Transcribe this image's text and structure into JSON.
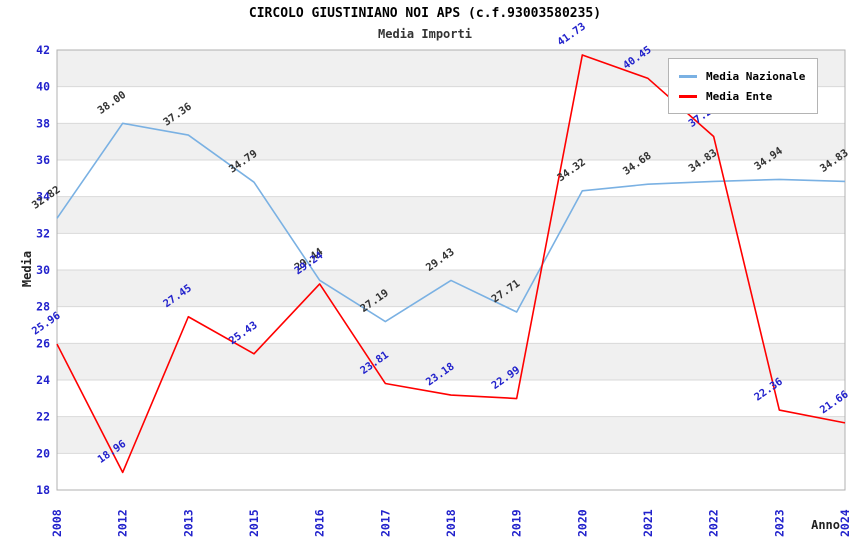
{
  "title": "CIRCOLO GIUSTINIANO NOI APS (c.f.93003580235)",
  "subtitle": "Media Importi",
  "chart_data": {
    "type": "line",
    "title": "CIRCOLO GIUSTINIANO NOI APS (c.f.93003580235)",
    "subtitle": "Media Importi",
    "xlabel": "Anno",
    "ylabel": "Media",
    "ylim": [
      18,
      42
    ],
    "ytick_step": 2,
    "grid": true,
    "legend_position": "top-right",
    "categories": [
      "2008",
      "2012",
      "2013",
      "2015",
      "2016",
      "2017",
      "2018",
      "2019",
      "2020",
      "2021",
      "2022",
      "2023",
      "2024"
    ],
    "series": [
      {
        "name": "Media Nazionale",
        "color": "#7ab1e3",
        "label_color": "#333333",
        "values": [
          32.82,
          38.0,
          37.36,
          34.79,
          29.44,
          27.19,
          29.43,
          27.71,
          34.32,
          34.68,
          34.83,
          34.94,
          34.83
        ]
      },
      {
        "name": "Media Ente",
        "color": "#ff0000",
        "label_color": "#2222cc",
        "values": [
          25.96,
          18.96,
          27.45,
          25.43,
          29.24,
          23.81,
          23.18,
          22.99,
          41.73,
          40.45,
          37.28,
          22.36,
          21.66
        ]
      }
    ],
    "colors": {
      "band": "#f0f0f0",
      "grid_line": "#d9d9d9",
      "plot_border": "#b0b0b0",
      "axis_tick_text": "#2222cc"
    }
  }
}
